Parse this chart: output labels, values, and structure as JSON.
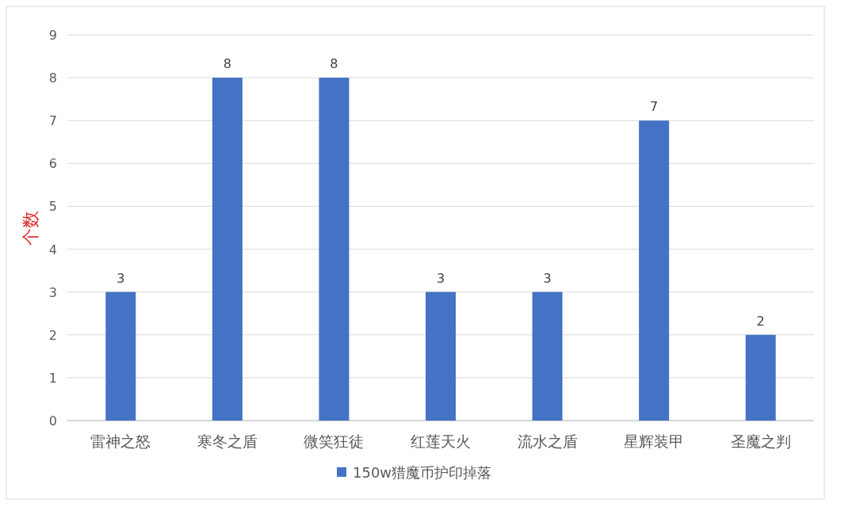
{
  "chart_data": {
    "type": "bar",
    "ylabel": "个数",
    "categories": [
      "雷神之怒",
      "寒冬之盾",
      "微笑狂徒",
      "红莲天火",
      "流水之盾",
      "星辉装甲",
      "圣魔之判"
    ],
    "series": [
      {
        "name": "150w猎魔币护印掉落",
        "color": "#4472c4",
        "values": [
          3,
          8,
          8,
          3,
          3,
          7,
          2
        ]
      }
    ],
    "ylim": [
      0,
      9
    ],
    "yticks": [
      0,
      1,
      2,
      3,
      4,
      5,
      6,
      7,
      8,
      9
    ],
    "grid": "y",
    "data_labels": true,
    "legend": "bottom"
  }
}
